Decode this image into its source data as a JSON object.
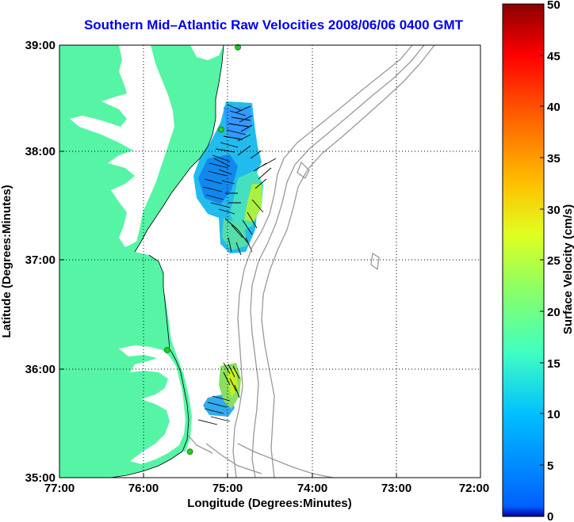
{
  "title": "Southern Mid–Atlantic Raw Velocities 2008/06/06 0400 GMT",
  "x_axis": {
    "label": "Longitude (Degrees:Minutes)",
    "ticks": [
      "77:00",
      "76:00",
      "75:00",
      "74:00",
      "73:00",
      "72:00"
    ]
  },
  "y_axis": {
    "label": "Latitude (Degrees:Minutes)",
    "ticks": [
      "39:00",
      "38:00",
      "37:00",
      "36:00",
      "35:00"
    ]
  },
  "colorbar": {
    "label": "Surface Velocity (cm/s)",
    "ticks": [
      "50",
      "45",
      "40",
      "35",
      "30",
      "25",
      "20",
      "15",
      "10",
      "5",
      "0"
    ],
    "min": 0,
    "max": 50,
    "colormap": "jet"
  },
  "colors": {
    "land": "#55f5a5",
    "water": "#ffffff",
    "title": "#0000ee",
    "bathymetry": "#999999",
    "station": "#22cc22"
  },
  "map": {
    "lon_range": [
      -77,
      -72
    ],
    "lat_range": [
      35,
      39
    ],
    "grid": "dotted"
  },
  "stations": [
    {
      "lon": -74.88,
      "lat": 38.98
    },
    {
      "lon": -75.08,
      "lat": 38.22
    },
    {
      "lon": -75.72,
      "lat": 36.18
    },
    {
      "lon": -75.45,
      "lat": 35.24
    }
  ]
}
